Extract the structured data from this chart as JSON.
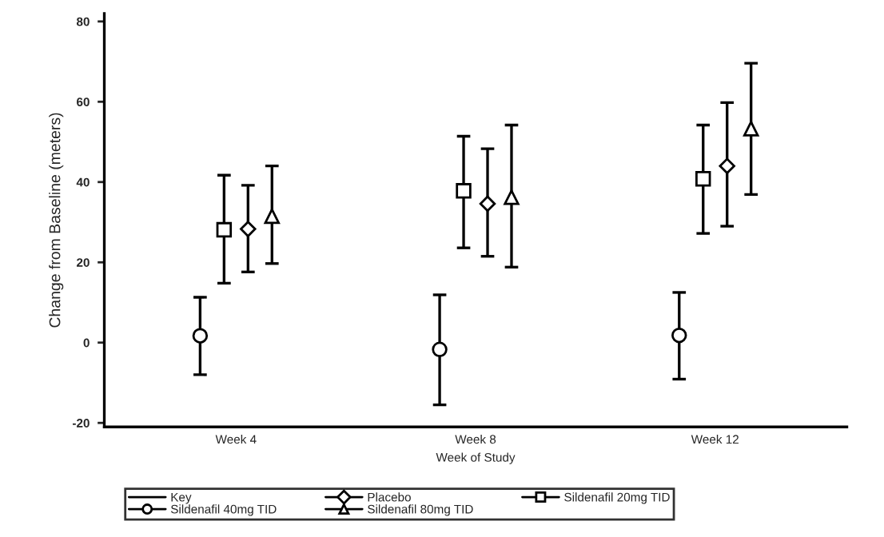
{
  "chart_data": {
    "type": "scatter",
    "xlabel": "Week of Study",
    "ylabel": "Change from Baseline (meters)",
    "legend_title": "Key",
    "categories": [
      "Week 4",
      "Week 8",
      "Week 12"
    ],
    "ylim": [
      -21,
      82
    ],
    "yticks": [
      -20,
      0,
      20,
      40,
      60,
      80
    ],
    "grid": false,
    "legend": "bottom",
    "series": [
      {
        "name": "Sildenafil 40mg TID",
        "color": "#000000",
        "marker": "circle",
        "values": [
          1.7,
          -1.7,
          1.8
        ],
        "errors": [
          [
            -8,
            11.3
          ],
          [
            -15.5,
            11.9
          ],
          [
            -9.1,
            12.5
          ]
        ]
      },
      {
        "name": "Sildenafil 20mg TID",
        "color": "#000000",
        "marker": "square",
        "values": [
          28.1,
          37.8,
          40.8
        ],
        "errors": [
          [
            14.8,
            41.7
          ],
          [
            23.6,
            51.4
          ],
          [
            27.2,
            54.2
          ]
        ]
      },
      {
        "name": "Placebo",
        "color": "#000000",
        "marker": "diamond",
        "values": [
          28.3,
          34.6,
          44
        ],
        "errors": [
          [
            17.6,
            39.2
          ],
          [
            21.5,
            48.3
          ],
          [
            29,
            59.8
          ]
        ]
      },
      {
        "name": "Sildenafil 80mg TID",
        "color": "#000000",
        "marker": "triangle",
        "values": [
          31.5,
          36.2,
          53.3
        ],
        "errors": [
          [
            19.7,
            44
          ],
          [
            18.8,
            54.2
          ],
          [
            36.9,
            69.6
          ]
        ]
      }
    ]
  }
}
